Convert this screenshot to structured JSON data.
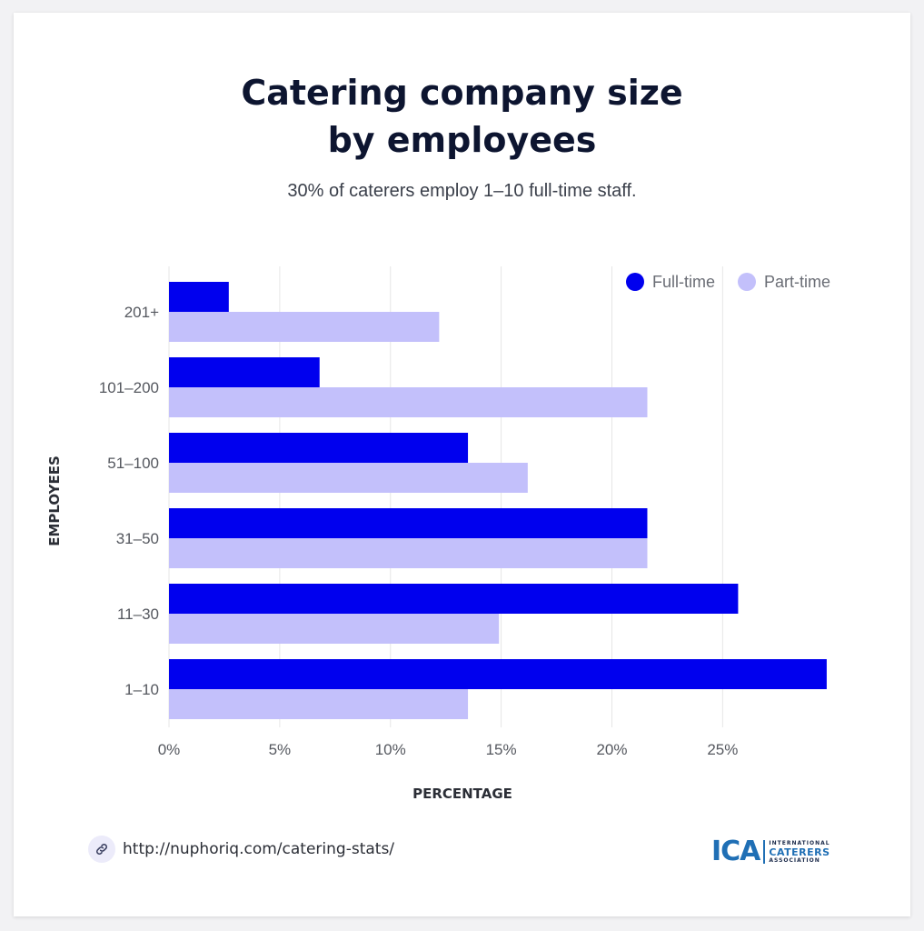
{
  "header": {
    "title_line1": "Catering company size",
    "title_line2": "by employees",
    "subtitle": "30% of caterers employ 1–10 full-time staff."
  },
  "colors": {
    "full_time": "#0000ee",
    "part_time": "#c3c0fb",
    "gridline": "#e6e6e6"
  },
  "chart_data": {
    "type": "bar",
    "orientation": "horizontal",
    "ylabel": "EMPLOYEES",
    "xlabel": "PERCENTAGE",
    "categories": [
      "201+",
      "101–200",
      "51–100",
      "31–50",
      "11–30",
      "1–10"
    ],
    "series": [
      {
        "name": "Full-time",
        "values": [
          2.7,
          6.8,
          13.5,
          21.6,
          25.7,
          29.7
        ]
      },
      {
        "name": "Part-time",
        "values": [
          12.2,
          21.6,
          16.2,
          21.6,
          14.9,
          13.5
        ]
      }
    ],
    "xlim": [
      0,
      30
    ],
    "xticks": [
      0,
      5,
      10,
      15,
      20,
      25
    ],
    "xtick_labels": [
      "0%",
      "5%",
      "10%",
      "15%",
      "20%",
      "25%"
    ],
    "grid": "vertical",
    "legend_position": "top-right"
  },
  "footer": {
    "link_icon": "link-icon",
    "link_text": "http://nuphoriq.com/catering-stats/",
    "logo_mark": "ICA",
    "logo_line1": "INTERNATIONAL",
    "logo_line2": "CATERERS",
    "logo_line3": "ASSOCIATION"
  }
}
